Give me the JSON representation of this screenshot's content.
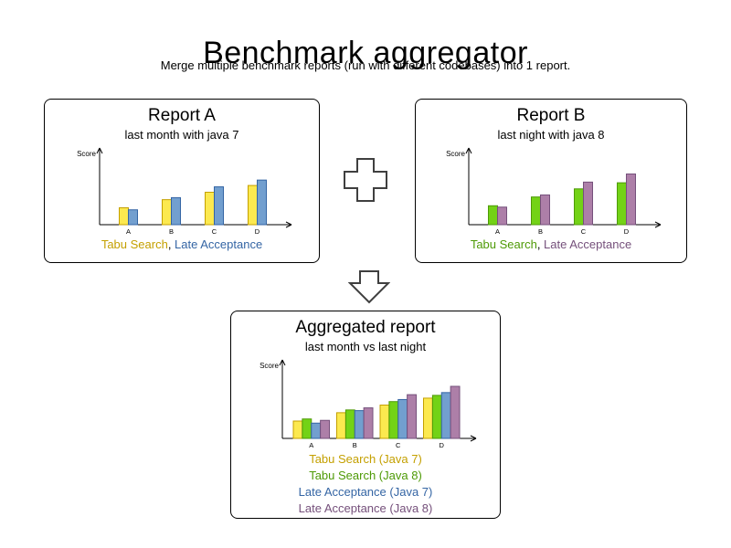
{
  "page": {
    "title": "Benchmark aggregator",
    "subtitle": "Merge multiple benchmark reports (run with different codebases) into 1 report."
  },
  "reports": [
    {
      "title": "Report A",
      "subtitle": "last month with java 7",
      "separator": ", ",
      "legend": [
        {
          "label": "Tabu Search",
          "color": "#c4a000"
        },
        {
          "label": "Late Acceptance",
          "color": "#3465a4"
        }
      ]
    },
    {
      "title": "Report B",
      "subtitle": "last night with java 8",
      "separator": ", ",
      "legend": [
        {
          "label": "Tabu Search",
          "color": "#4e9a06"
        },
        {
          "label": "Late Acceptance",
          "color": "#75507b"
        }
      ]
    }
  ],
  "aggregated": {
    "title": "Aggregated report",
    "subtitle": "last month vs last night",
    "legend": [
      {
        "label": "Tabu Search (Java 7)",
        "color": "#c4a000"
      },
      {
        "label": "Tabu Search (Java 8)",
        "color": "#4e9a06"
      },
      {
        "label": "Late Acceptance (Java 7)",
        "color": "#3465a4"
      },
      {
        "label": "Late Acceptance (Java 8)",
        "color": "#75507b"
      }
    ]
  },
  "chart_data": [
    {
      "id": "report-a",
      "type": "bar",
      "title": "Report A — last month with java 7",
      "categories": [
        "A",
        "B",
        "C",
        "D"
      ],
      "ylabel": "Score",
      "ylim": [
        0,
        100
      ],
      "grid": false,
      "legend_position": "bottom",
      "series": [
        {
          "name": "Tabu Search (Java 7)",
          "fill": "#fce94f",
          "stroke": "#c4a000",
          "values": [
            25,
            37,
            48,
            58
          ]
        },
        {
          "name": "Late Acceptance (Java 7)",
          "fill": "#729fcf",
          "stroke": "#3465a4",
          "values": [
            22,
            40,
            56,
            66
          ]
        }
      ]
    },
    {
      "id": "report-b",
      "type": "bar",
      "title": "Report B — last night with java 8",
      "categories": [
        "A",
        "B",
        "C",
        "D"
      ],
      "ylabel": "Score",
      "ylim": [
        0,
        100
      ],
      "grid": false,
      "legend_position": "bottom",
      "series": [
        {
          "name": "Tabu Search (Java 8)",
          "fill": "#73d216",
          "stroke": "#4e9a06",
          "values": [
            28,
            41,
            53,
            62
          ]
        },
        {
          "name": "Late Acceptance (Java 8)",
          "fill": "#ad7fa8",
          "stroke": "#75507b",
          "values": [
            26,
            44,
            63,
            75
          ]
        }
      ]
    },
    {
      "id": "aggregated",
      "type": "bar",
      "title": "Aggregated report — last month vs last night",
      "categories": [
        "A",
        "B",
        "C",
        "D"
      ],
      "ylabel": "Score",
      "ylim": [
        0,
        100
      ],
      "grid": false,
      "legend_position": "bottom",
      "series": [
        {
          "name": "Tabu Search (Java 7)",
          "fill": "#fce94f",
          "stroke": "#c4a000",
          "values": [
            25,
            37,
            48,
            58
          ]
        },
        {
          "name": "Tabu Search (Java 8)",
          "fill": "#73d216",
          "stroke": "#4e9a06",
          "values": [
            28,
            41,
            53,
            62
          ]
        },
        {
          "name": "Late Acceptance (Java 7)",
          "fill": "#729fcf",
          "stroke": "#3465a4",
          "values": [
            22,
            40,
            56,
            66
          ]
        },
        {
          "name": "Late Acceptance (Java 8)",
          "fill": "#ad7fa8",
          "stroke": "#75507b",
          "values": [
            26,
            44,
            63,
            75
          ]
        }
      ]
    }
  ]
}
